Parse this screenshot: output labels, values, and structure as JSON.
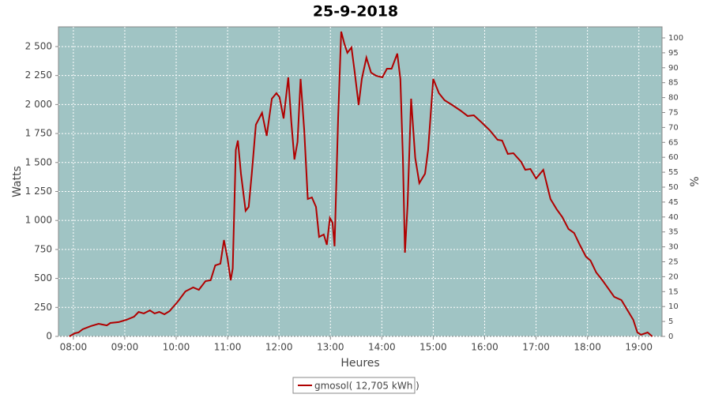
{
  "chart_data": {
    "type": "line",
    "title": "25-9-2018",
    "xlabel": "Heures",
    "ylabel": "Watts",
    "y2label": "%",
    "x": [
      7.92,
      8.03,
      8.1,
      8.18,
      8.34,
      8.49,
      8.65,
      8.72,
      8.88,
      9.03,
      9.18,
      9.27,
      9.37,
      9.49,
      9.58,
      9.67,
      9.77,
      9.87,
      10.03,
      10.18,
      10.33,
      10.44,
      10.57,
      10.67,
      10.76,
      10.86,
      10.93,
      11.0,
      11.06,
      11.1,
      11.16,
      11.2,
      11.26,
      11.35,
      11.41,
      11.47,
      11.55,
      11.67,
      11.76,
      11.86,
      11.95,
      12.01,
      12.09,
      12.18,
      12.24,
      12.3,
      12.36,
      12.42,
      12.49,
      12.56,
      12.64,
      12.72,
      12.78,
      12.87,
      12.93,
      12.99,
      13.04,
      13.08,
      13.15,
      13.21,
      13.27,
      13.33,
      13.41,
      13.47,
      13.55,
      13.61,
      13.7,
      13.79,
      13.89,
      14.01,
      14.1,
      14.19,
      14.3,
      14.36,
      14.41,
      14.45,
      14.5,
      14.57,
      14.65,
      14.73,
      14.84,
      14.9,
      15.0,
      15.11,
      15.22,
      15.37,
      15.53,
      15.67,
      15.79,
      15.94,
      16.1,
      16.25,
      16.34,
      16.45,
      16.56,
      16.71,
      16.79,
      16.89,
      17.0,
      17.14,
      17.28,
      17.4,
      17.51,
      17.63,
      17.74,
      17.85,
      17.97,
      18.06,
      18.17,
      18.29,
      18.4,
      18.52,
      18.66,
      18.78,
      18.89,
      18.97,
      19.04,
      19.17,
      19.26
    ],
    "series": [
      {
        "name": "gmosol( 12,705 kWh )",
        "color": "#b00000",
        "values": [
          0,
          27,
          34,
          61,
          89,
          109,
          95,
          116,
          123,
          143,
          170,
          211,
          198,
          225,
          198,
          211,
          191,
          218,
          300,
          388,
          422,
          402,
          477,
          484,
          613,
          627,
          831,
          668,
          484,
          586,
          1608,
          1689,
          1403,
          1083,
          1117,
          1403,
          1826,
          1928,
          1730,
          2050,
          2098,
          2064,
          1880,
          2234,
          1846,
          1526,
          1676,
          2221,
          1778,
          1185,
          1199,
          1117,
          858,
          879,
          790,
          1022,
          981,
          777,
          1880,
          2629,
          2527,
          2446,
          2493,
          2289,
          1996,
          2221,
          2405,
          2275,
          2248,
          2234,
          2309,
          2309,
          2439,
          2221,
          1540,
          722,
          1131,
          2050,
          1540,
          1322,
          1403,
          1608,
          2221,
          2098,
          2037,
          1996,
          1948,
          1901,
          1907,
          1846,
          1778,
          1696,
          1689,
          1574,
          1580,
          1505,
          1437,
          1444,
          1362,
          1437,
          1185,
          1097,
          1029,
          926,
          892,
          790,
          688,
          654,
          552,
          484,
          416,
          341,
          313,
          225,
          143,
          34,
          14,
          34,
          0
        ]
      }
    ],
    "xlim": [
      7.71,
      19.45
    ],
    "xticks": [
      {
        "value": 8,
        "label": "08:00"
      },
      {
        "value": 9,
        "label": "09:00"
      },
      {
        "value": 10,
        "label": "10:00"
      },
      {
        "value": 11,
        "label": "11:00"
      },
      {
        "value": 12,
        "label": "12:00"
      },
      {
        "value": 13,
        "label": "13:00"
      },
      {
        "value": 14,
        "label": "14:00"
      },
      {
        "value": 15,
        "label": "15:00"
      },
      {
        "value": 16,
        "label": "16:00"
      },
      {
        "value": 17,
        "label": "17:00"
      },
      {
        "value": 18,
        "label": "18:00"
      },
      {
        "value": 19,
        "label": "19:00"
      }
    ],
    "ylim": [
      0,
      2670
    ],
    "yticks": [
      0,
      250,
      500,
      750,
      {
        "value": 1000,
        "label": "1 000"
      },
      {
        "value": 1250,
        "label": "1 250"
      },
      {
        "value": 1500,
        "label": "1 500"
      },
      {
        "value": 1750,
        "label": "1 750"
      },
      {
        "value": 2000,
        "label": "2 000"
      },
      {
        "value": 2250,
        "label": "2 250"
      },
      {
        "value": 2500,
        "label": "2 500"
      }
    ],
    "y2lim": [
      0,
      103.7
    ],
    "y2ticks": [
      0,
      5,
      10,
      15,
      20,
      25,
      30,
      35,
      40,
      45,
      50,
      55,
      60,
      65,
      70,
      75,
      80,
      85,
      90,
      95,
      100
    ],
    "grid": true
  }
}
